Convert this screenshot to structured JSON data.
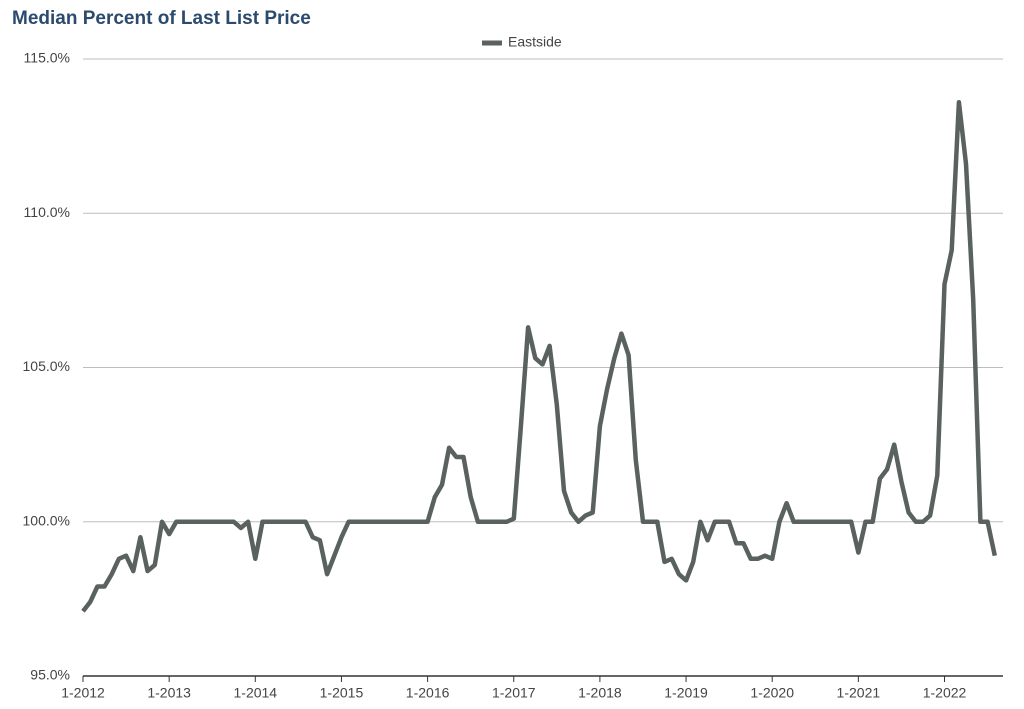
{
  "chart_data": {
    "type": "line",
    "title": "Median Percent of Last List Price",
    "legend": "top-center",
    "grid": true,
    "categories": [
      "1-2012",
      null,
      null,
      null,
      null,
      null,
      null,
      null,
      null,
      null,
      null,
      null,
      "1-2013",
      null,
      null,
      null,
      null,
      null,
      null,
      null,
      null,
      null,
      null,
      null,
      "1-2014",
      null,
      null,
      null,
      null,
      null,
      null,
      null,
      null,
      null,
      null,
      null,
      "1-2015",
      null,
      null,
      null,
      null,
      null,
      null,
      null,
      null,
      null,
      null,
      null,
      "1-2016",
      null,
      null,
      null,
      null,
      null,
      null,
      null,
      null,
      null,
      null,
      null,
      "1-2017",
      null,
      null,
      null,
      null,
      null,
      null,
      null,
      null,
      null,
      null,
      null,
      "1-2018",
      null,
      null,
      null,
      null,
      null,
      null,
      null,
      null,
      null,
      null,
      null,
      "1-2019",
      null,
      null,
      null,
      null,
      null,
      null,
      null,
      null,
      null,
      null,
      null,
      "1-2020",
      null,
      null,
      null,
      null,
      null,
      null,
      null,
      null,
      null,
      null,
      null,
      "1-2021",
      null,
      null,
      null,
      null,
      null,
      null,
      null,
      null,
      null,
      null,
      null,
      "1-2022",
      null,
      null,
      null,
      null,
      null,
      null,
      null
    ],
    "series": [
      {
        "name": "Eastside",
        "color": "#59625f",
        "values": [
          97.1,
          97.4,
          97.9,
          97.9,
          98.3,
          98.8,
          98.9,
          98.4,
          99.5,
          98.4,
          98.6,
          100.0,
          99.6,
          100,
          100,
          100,
          100,
          100,
          100,
          100,
          100,
          100,
          99.8,
          100,
          98.8,
          100,
          100,
          100,
          100,
          100,
          100,
          100,
          99.5,
          99.4,
          98.3,
          98.9,
          99.5,
          100,
          100,
          100,
          100,
          100,
          100,
          100,
          100,
          100,
          100,
          100,
          100,
          100.8,
          101.2,
          102.4,
          102.1,
          102.1,
          100.8,
          100,
          100,
          100,
          100,
          100,
          100.1,
          103.1,
          106.3,
          105.3,
          105.1,
          105.7,
          103.8,
          101,
          100.3,
          100,
          100.2,
          100.3,
          103.1,
          104.3,
          105.3,
          106.1,
          105.4,
          102,
          100,
          100,
          100,
          98.7,
          98.8,
          98.3,
          98.1,
          98.7,
          100,
          99.4,
          100,
          100,
          100,
          99.3,
          99.3,
          98.8,
          98.8,
          98.9,
          98.8,
          100,
          100.6,
          100,
          100,
          100,
          100,
          100,
          100,
          100,
          100,
          100,
          99.0,
          100,
          100,
          101.4,
          101.7,
          102.5,
          101.3,
          100.3,
          100,
          100,
          100.2,
          101.5,
          107.7,
          108.8,
          113.6,
          111.6,
          107.2,
          100,
          100,
          98.9
        ]
      }
    ],
    "ylim": [
      95,
      115
    ],
    "yticks": [
      {
        "value": 95,
        "label": "95.0%"
      },
      {
        "value": 100,
        "label": "100.0%"
      },
      {
        "value": 105,
        "label": "105.0%"
      },
      {
        "value": 110,
        "label": "110.0%"
      },
      {
        "value": 115,
        "label": "115.0%"
      }
    ]
  }
}
